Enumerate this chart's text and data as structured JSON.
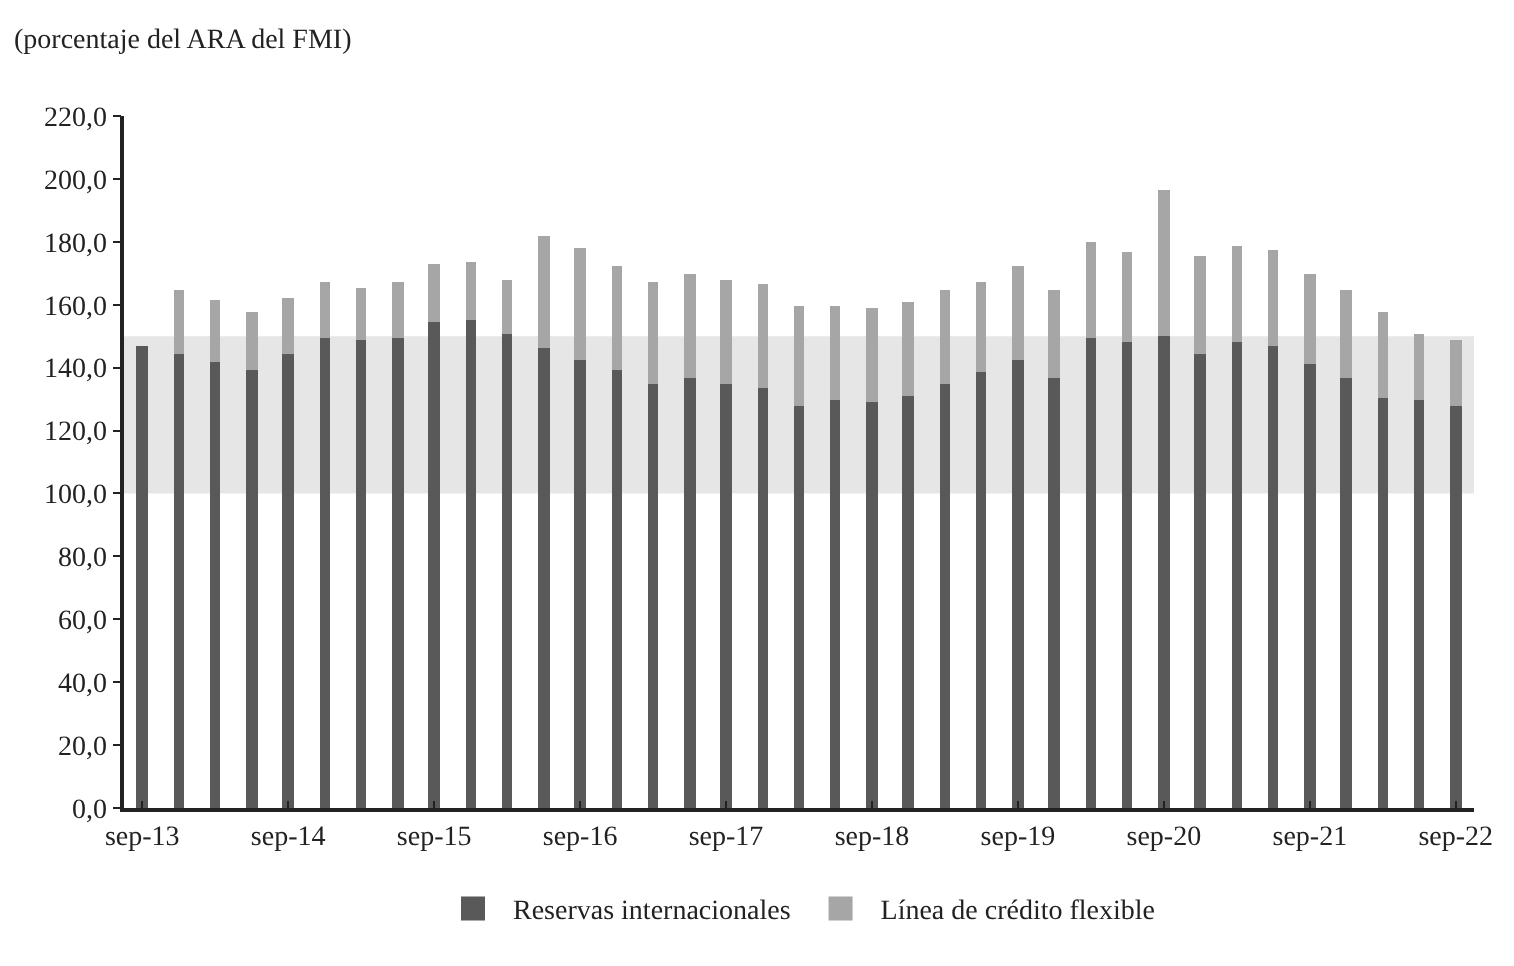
{
  "chart_data": {
    "type": "bar",
    "stacked": true,
    "ylabel": "(porcentaje del ARA del FMI)",
    "categories": [
      "sep-13",
      null,
      null,
      null,
      "sep-14",
      null,
      null,
      null,
      "sep-15",
      null,
      null,
      null,
      "sep-16",
      null,
      null,
      null,
      "sep-17",
      null,
      null,
      null,
      "sep-18",
      null,
      null,
      null,
      "sep-19",
      null,
      null,
      null,
      "sep-20",
      null,
      null,
      null,
      "sep-21",
      null,
      null,
      null,
      "sep-22"
    ],
    "series": [
      {
        "name": "Reservas internacionales",
        "color": "#595959",
        "values": [
          147,
          144.5,
          142,
          139.5,
          144.5,
          149.5,
          148.5,
          149.5,
          154.5,
          155,
          151,
          146.5,
          142.5,
          139,
          135,
          136.5,
          135,
          133.5,
          127.5,
          129.5,
          129,
          131,
          135,
          138.5,
          142.5,
          137,
          149.5,
          148,
          150,
          144.5,
          148,
          147,
          141,
          137,
          130.5,
          129.5,
          127.5
        ]
      },
      {
        "name": "Línea de crédito flexible",
        "color": "#a6a6a6",
        "values": [
          null,
          20,
          19.5,
          18.5,
          17.5,
          18,
          17,
          17.5,
          18.5,
          18.5,
          17,
          35.5,
          35.5,
          33,
          32.5,
          33,
          33,
          33,
          32,
          30,
          30,
          30,
          29.5,
          29,
          29.5,
          28,
          30.5,
          29,
          46.5,
          31,
          30.5,
          30.5,
          29,
          28,
          27,
          21.5,
          21.5
        ]
      }
    ],
    "ylim": [
      0,
      220
    ],
    "yticks": [
      {
        "value": 0,
        "label": "0,0"
      },
      {
        "value": 20,
        "label": "20,0"
      },
      {
        "value": 40,
        "label": "40,0"
      },
      {
        "value": 60,
        "label": "60,0"
      },
      {
        "value": 80,
        "label": "80,0"
      },
      {
        "value": 100,
        "label": "100,0"
      },
      {
        "value": 120,
        "label": "120,0"
      },
      {
        "value": 140,
        "label": "140,0"
      },
      {
        "value": 160,
        "label": "160,0"
      },
      {
        "value": 180,
        "label": "180,0"
      },
      {
        "value": 200,
        "label": "200,0"
      },
      {
        "value": 220,
        "label": "220,0"
      }
    ],
    "bands": [
      {
        "axis": "y",
        "from": 100,
        "to": 150,
        "color": "#e6e6e6"
      }
    ],
    "grid": false,
    "legend": "bottom"
  }
}
